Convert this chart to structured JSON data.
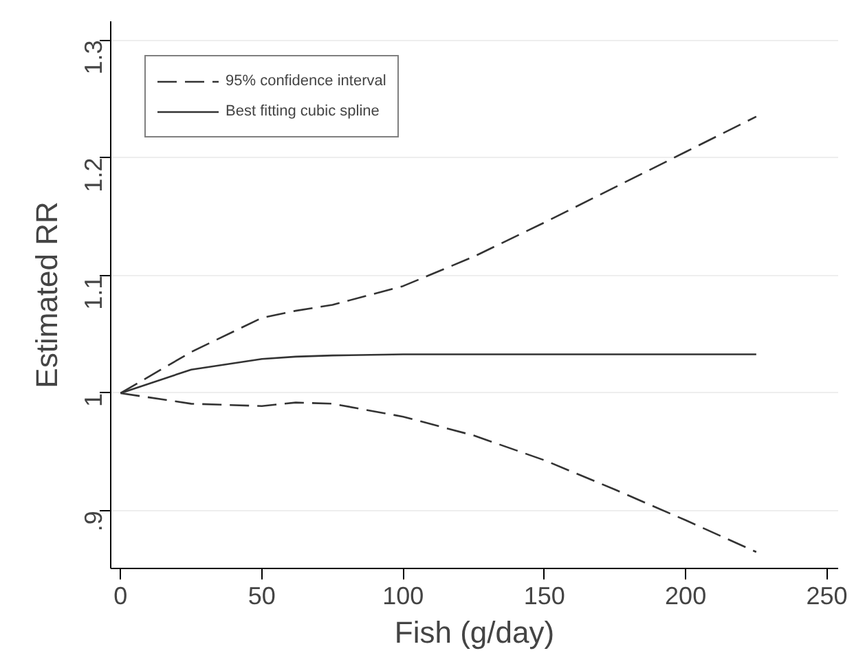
{
  "chart_data": {
    "type": "line",
    "xlabel": "Fish (g/day)",
    "ylabel": "Estimated RR",
    "xlim": [
      -3.5,
      254
    ],
    "ylim": [
      0.851,
      1.316
    ],
    "xticks": [
      0,
      50,
      100,
      150,
      200,
      250
    ],
    "yticks": [
      {
        "value": 0.9,
        "label": ".9"
      },
      1,
      1.1,
      1.2,
      1.3
    ],
    "grid": "y",
    "legend": "top left",
    "marker": "none",
    "x": [
      0,
      25,
      50,
      62,
      75,
      100,
      125,
      150,
      175,
      200,
      225
    ],
    "series": [
      {
        "name": "95% confidence interval",
        "color": "#333333",
        "line_style": "dashed",
        "values": [
          1.0,
          1.035,
          1.064,
          1.07,
          1.075,
          1.091,
          1.116,
          1.145,
          1.175,
          1.205,
          1.235
        ]
      },
      {
        "name": "Best fitting cubic spline",
        "color": "#333333",
        "line_style": "solid",
        "values": [
          1.0,
          1.02,
          1.029,
          1.031,
          1.032,
          1.033,
          1.033,
          1.033,
          1.033,
          1.033,
          1.033
        ]
      },
      {
        "color": "#333333",
        "line_style": "dashed",
        "values": [
          1.0,
          0.991,
          0.989,
          0.992,
          0.991,
          0.98,
          0.964,
          0.943,
          0.918,
          0.892,
          0.865
        ]
      }
    ]
  }
}
